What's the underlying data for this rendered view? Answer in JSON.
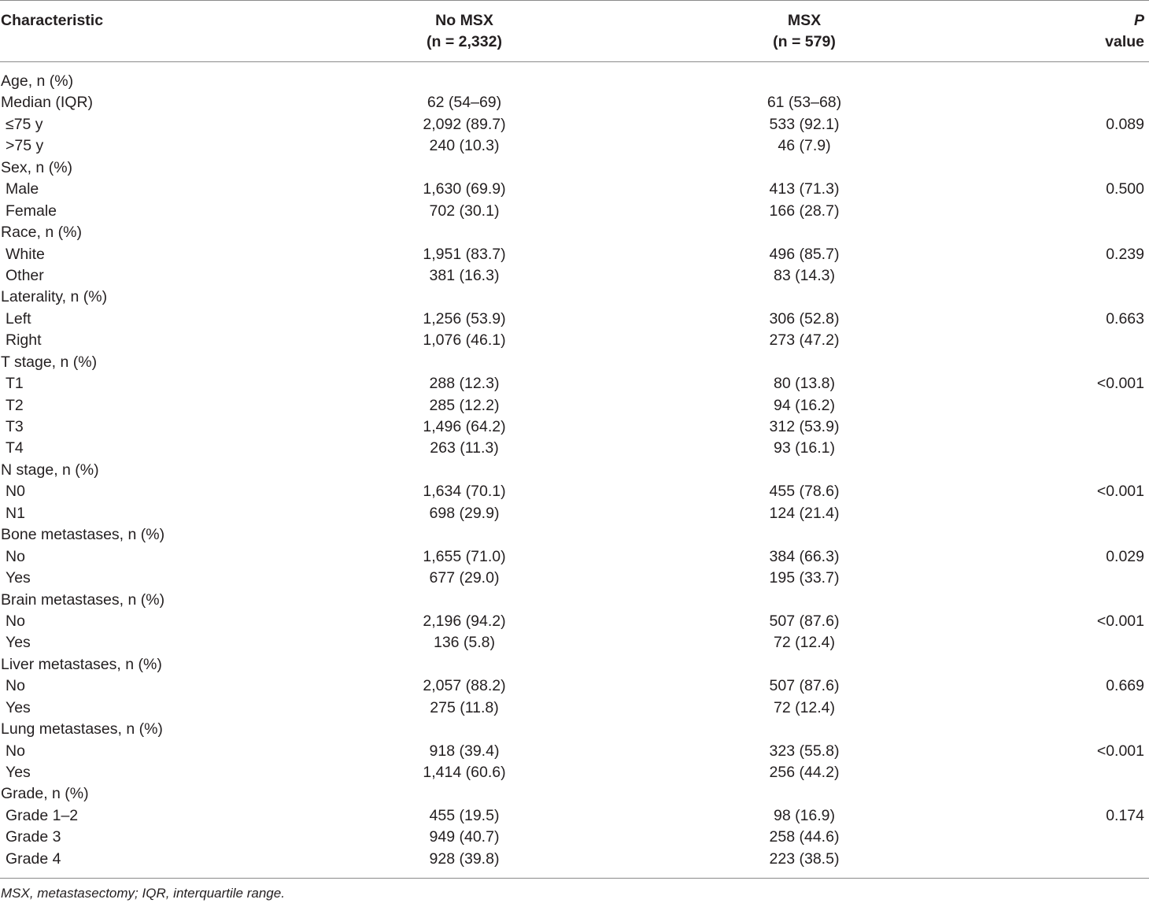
{
  "header": {
    "characteristic": "Characteristic",
    "col1_line1": "No MSX",
    "col1_line2": "(n = 2,332)",
    "col2_line1": "MSX",
    "col2_line2": "(n = 579)",
    "p_line1": "P",
    "p_line2": "value"
  },
  "rows": [
    {
      "label": "Age, n (%)",
      "a": "",
      "b": "",
      "p": "",
      "sub": false
    },
    {
      "label": "Median (IQR)",
      "a": "62 (54–69)",
      "b": "61 (53–68)",
      "p": "",
      "sub": false
    },
    {
      "label": "≤75 y",
      "a": "2,092 (89.7)",
      "b": "533 (92.1)",
      "p": "0.089",
      "sub": true
    },
    {
      "label": ">75 y",
      "a": "240 (10.3)",
      "b": "46 (7.9)",
      "p": "",
      "sub": true
    },
    {
      "label": "Sex, n (%)",
      "a": "",
      "b": "",
      "p": "",
      "sub": false
    },
    {
      "label": "Male",
      "a": "1,630 (69.9)",
      "b": "413 (71.3)",
      "p": "0.500",
      "sub": true
    },
    {
      "label": "Female",
      "a": "702 (30.1)",
      "b": "166 (28.7)",
      "p": "",
      "sub": true
    },
    {
      "label": "Race, n (%)",
      "a": "",
      "b": "",
      "p": "",
      "sub": false
    },
    {
      "label": "White",
      "a": "1,951 (83.7)",
      "b": "496 (85.7)",
      "p": "0.239",
      "sub": true
    },
    {
      "label": "Other",
      "a": "381 (16.3)",
      "b": "83 (14.3)",
      "p": "",
      "sub": true
    },
    {
      "label": "Laterality, n (%)",
      "a": "",
      "b": "",
      "p": "",
      "sub": false
    },
    {
      "label": "Left",
      "a": "1,256 (53.9)",
      "b": "306 (52.8)",
      "p": "0.663",
      "sub": true
    },
    {
      "label": "Right",
      "a": "1,076 (46.1)",
      "b": "273 (47.2)",
      "p": "",
      "sub": true
    },
    {
      "label": "T stage, n (%)",
      "a": "",
      "b": "",
      "p": "",
      "sub": false
    },
    {
      "label": "T1",
      "a": "288 (12.3)",
      "b": "80 (13.8)",
      "p": "<0.001",
      "sub": true
    },
    {
      "label": "T2",
      "a": "285 (12.2)",
      "b": "94 (16.2)",
      "p": "",
      "sub": true
    },
    {
      "label": "T3",
      "a": "1,496 (64.2)",
      "b": "312 (53.9)",
      "p": "",
      "sub": true
    },
    {
      "label": "T4",
      "a": "263 (11.3)",
      "b": "93 (16.1)",
      "p": "",
      "sub": true
    },
    {
      "label": "N stage, n (%)",
      "a": "",
      "b": "",
      "p": "",
      "sub": false
    },
    {
      "label": "N0",
      "a": "1,634 (70.1)",
      "b": "455 (78.6)",
      "p": "<0.001",
      "sub": true
    },
    {
      "label": "N1",
      "a": "698 (29.9)",
      "b": "124 (21.4)",
      "p": "",
      "sub": true
    },
    {
      "label": "Bone metastases, n (%)",
      "a": "",
      "b": "",
      "p": "",
      "sub": false
    },
    {
      "label": "No",
      "a": "1,655 (71.0)",
      "b": "384 (66.3)",
      "p": "0.029",
      "sub": true
    },
    {
      "label": "Yes",
      "a": "677 (29.0)",
      "b": "195 (33.7)",
      "p": "",
      "sub": true
    },
    {
      "label": "Brain metastases, n (%)",
      "a": "",
      "b": "",
      "p": "",
      "sub": false
    },
    {
      "label": "No",
      "a": "2,196 (94.2)",
      "b": "507 (87.6)",
      "p": "<0.001",
      "sub": true
    },
    {
      "label": "Yes",
      "a": "136 (5.8)",
      "b": "72 (12.4)",
      "p": "",
      "sub": true
    },
    {
      "label": "Liver metastases, n (%)",
      "a": "",
      "b": "",
      "p": "",
      "sub": false
    },
    {
      "label": "No",
      "a": "2,057 (88.2)",
      "b": "507 (87.6)",
      "p": "0.669",
      "sub": true
    },
    {
      "label": "Yes",
      "a": "275 (11.8)",
      "b": "72 (12.4)",
      "p": "",
      "sub": true
    },
    {
      "label": "Lung metastases, n (%)",
      "a": "",
      "b": "",
      "p": "",
      "sub": false
    },
    {
      "label": "No",
      "a": "918 (39.4)",
      "b": "323 (55.8)",
      "p": "<0.001",
      "sub": true
    },
    {
      "label": "Yes",
      "a": "1,414 (60.6)",
      "b": "256 (44.2)",
      "p": "",
      "sub": true
    },
    {
      "label": "Grade, n (%)",
      "a": "",
      "b": "",
      "p": "",
      "sub": false
    },
    {
      "label": "Grade 1–2",
      "a": "455 (19.5)",
      "b": "98 (16.9)",
      "p": "0.174",
      "sub": true
    },
    {
      "label": "Grade 3",
      "a": "949 (40.7)",
      "b": "258 (44.6)",
      "p": "",
      "sub": true
    },
    {
      "label": "Grade 4",
      "a": "928 (39.8)",
      "b": "223 (38.5)",
      "p": "",
      "sub": true
    }
  ],
  "footnote": "MSX, metastasectomy; IQR, interquartile range."
}
